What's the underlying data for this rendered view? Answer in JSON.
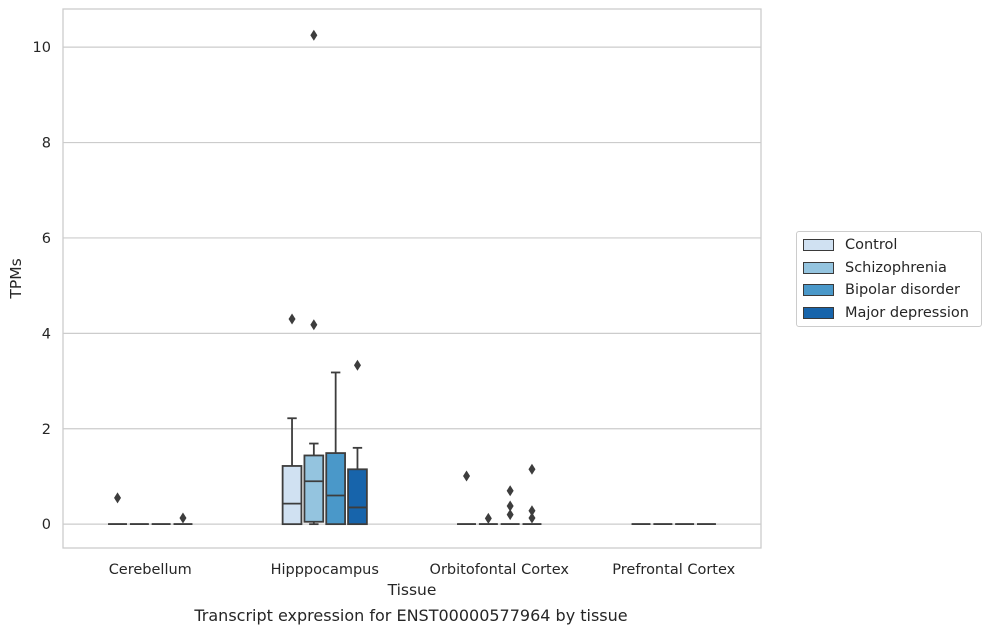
{
  "chart_data": {
    "type": "box",
    "xlabel": "Tissue",
    "ylabel": "TPMs",
    "ylim": [
      -0.5,
      10.8
    ],
    "yticks": [
      0,
      2,
      4,
      6,
      8,
      10
    ],
    "categories": [
      "Cerebellum",
      "Hipppocampus",
      "Orbitofontal Cortex",
      "Prefrontal Cortex"
    ],
    "grid": true,
    "legend_position": "right",
    "series": [
      {
        "name": "Control",
        "color": "#d0e1f2",
        "boxes": [
          {
            "q1": 0,
            "median": 0,
            "q3": 0,
            "whislo": 0,
            "whishi": 0,
            "fliers": [
              0.55
            ]
          },
          {
            "q1": 0,
            "median": 0.43,
            "q3": 1.22,
            "whislo": 0,
            "whishi": 2.22,
            "fliers": [
              4.3
            ]
          },
          {
            "q1": 0,
            "median": 0,
            "q3": 0,
            "whislo": 0,
            "whishi": 0,
            "fliers": [
              1.01
            ]
          },
          {
            "q1": 0,
            "median": 0,
            "q3": 0,
            "whislo": 0,
            "whishi": 0,
            "fliers": []
          }
        ]
      },
      {
        "name": "Schizophrenia",
        "color": "#94c4df",
        "boxes": [
          {
            "q1": 0,
            "median": 0,
            "q3": 0,
            "whislo": 0,
            "whishi": 0,
            "fliers": []
          },
          {
            "q1": 0.05,
            "median": 0.9,
            "q3": 1.44,
            "whislo": 0,
            "whishi": 1.69,
            "fliers": [
              10.25,
              4.18
            ]
          },
          {
            "q1": 0,
            "median": 0,
            "q3": 0,
            "whislo": 0,
            "whishi": 0,
            "fliers": [
              0.12
            ]
          },
          {
            "q1": 0,
            "median": 0,
            "q3": 0,
            "whislo": 0,
            "whishi": 0,
            "fliers": []
          }
        ]
      },
      {
        "name": "Bipolar disorder",
        "color": "#4a98c9",
        "boxes": [
          {
            "q1": 0,
            "median": 0,
            "q3": 0,
            "whislo": 0,
            "whishi": 0,
            "fliers": []
          },
          {
            "q1": 0,
            "median": 0.6,
            "q3": 1.49,
            "whislo": 0,
            "whishi": 3.18,
            "fliers": []
          },
          {
            "q1": 0,
            "median": 0,
            "q3": 0,
            "whislo": 0,
            "whishi": 0,
            "fliers": [
              0.7,
              0.38,
              0.2
            ]
          },
          {
            "q1": 0,
            "median": 0,
            "q3": 0,
            "whislo": 0,
            "whishi": 0,
            "fliers": []
          }
        ]
      },
      {
        "name": "Major depression",
        "color": "#1764ab",
        "boxes": [
          {
            "q1": 0,
            "median": 0,
            "q3": 0,
            "whislo": 0,
            "whishi": 0,
            "fliers": [
              0.13
            ]
          },
          {
            "q1": 0,
            "median": 0.35,
            "q3": 1.15,
            "whislo": 0,
            "whishi": 1.6,
            "fliers": [
              3.33
            ]
          },
          {
            "q1": 0,
            "median": 0,
            "q3": 0,
            "whislo": 0,
            "whishi": 0,
            "fliers": [
              1.15,
              0.28,
              0.13
            ]
          },
          {
            "q1": 0,
            "median": 0,
            "q3": 0,
            "whislo": 0,
            "whishi": 0,
            "fliers": []
          }
        ]
      }
    ]
  },
  "caption": "Transcript expression for ENST00000577964 by tissue"
}
